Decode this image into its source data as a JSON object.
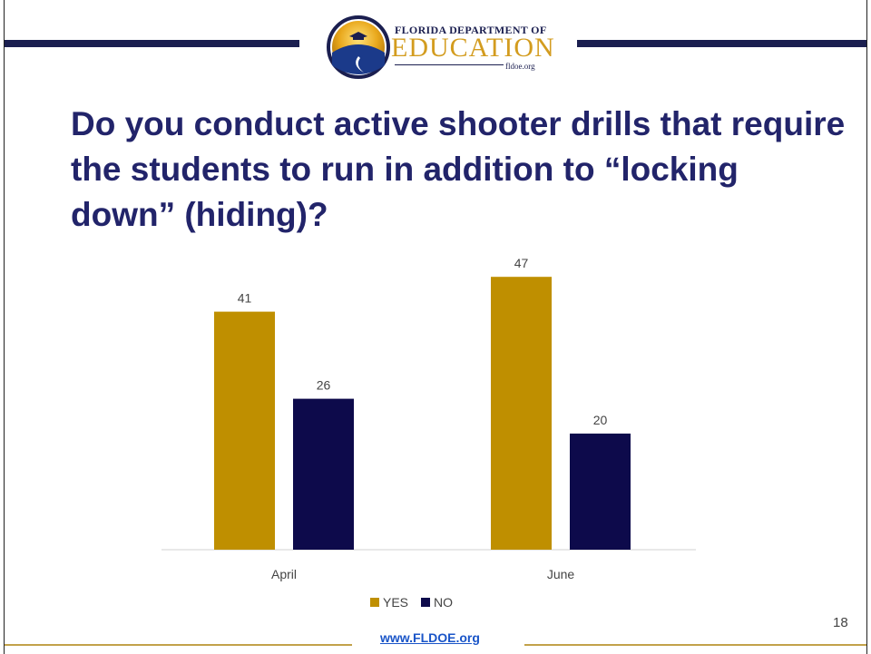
{
  "header": {
    "logo_line1": "FLORIDA DEPARTMENT OF",
    "logo_line2": "EDUCATION",
    "logo_url": "fldoe.org"
  },
  "slide": {
    "title": "Do you conduct active shooter drills that require the students to run in addition to “locking down” (hiding)?",
    "page_number": "18",
    "footer_link": "www.FLDOE.org"
  },
  "colors": {
    "yes": "#bf8f00",
    "no": "#0d0a4b",
    "title": "#22246a",
    "accent_bar": "#1b1f50",
    "footer_line": "#c2a24a"
  },
  "chart_data": {
    "type": "bar",
    "title": "",
    "xlabel": "",
    "ylabel": "",
    "categories": [
      "April",
      "June"
    ],
    "series": [
      {
        "name": "YES",
        "values": [
          41,
          47
        ]
      },
      {
        "name": "NO",
        "values": [
          26,
          20
        ]
      }
    ],
    "ylim": [
      0,
      50
    ],
    "grid": false,
    "legend_position": "bottom"
  }
}
